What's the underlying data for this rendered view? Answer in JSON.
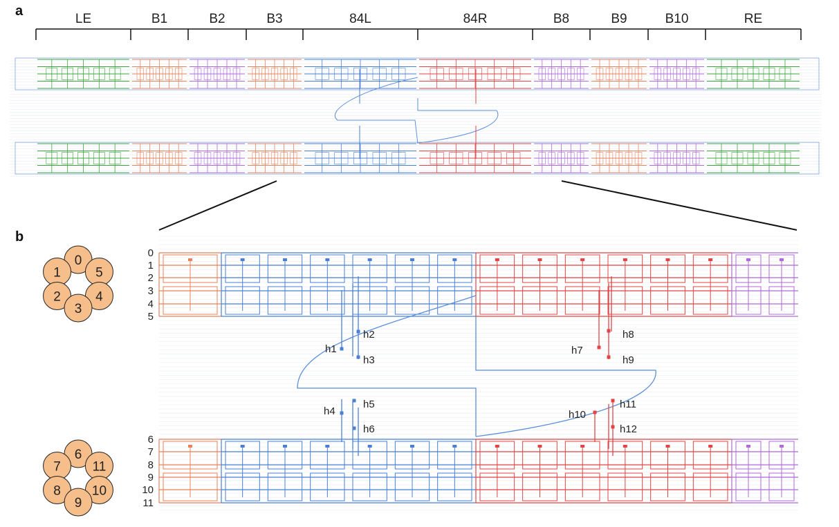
{
  "panel_a": {
    "letter": "a",
    "segments": [
      "LE",
      "B1",
      "B2",
      "B3",
      "84L",
      "84R",
      "B8",
      "B9",
      "B10",
      "RE"
    ],
    "colors": {
      "LE": "#3aa63a",
      "B1": "#e8825a",
      "B2": "#b06ad8",
      "B3": "#e8825a",
      "84L": "#4a7fd4",
      "84R": "#e04444",
      "B8": "#b06ad8",
      "B9": "#e8825a",
      "B10": "#b06ad8",
      "RE": "#3aa63a"
    }
  },
  "panel_b": {
    "letter": "b",
    "rows_top": [
      "0",
      "1",
      "2",
      "3",
      "4",
      "5"
    ],
    "rows_bottom": [
      "6",
      "7",
      "8",
      "9",
      "10",
      "11"
    ],
    "helix_labels": {
      "h1": "h1",
      "h2": "h2",
      "h3": "h3",
      "h4": "h4",
      "h5": "h5",
      "h6": "h6",
      "h7": "h7",
      "h8": "h8",
      "h9": "h9",
      "h10": "h10",
      "h11": "h11",
      "h12": "h12"
    },
    "cross_section_top": [
      "0",
      "1",
      "5",
      "2",
      "4",
      "3"
    ],
    "cross_section_bottom": [
      "6",
      "7",
      "11",
      "8",
      "10",
      "9"
    ],
    "colors": {
      "orange": "#e8825a",
      "blue": "#4a7fd4",
      "red": "#e04444",
      "purple": "#b06ad8",
      "circle_fill": "#f6be8a"
    }
  }
}
